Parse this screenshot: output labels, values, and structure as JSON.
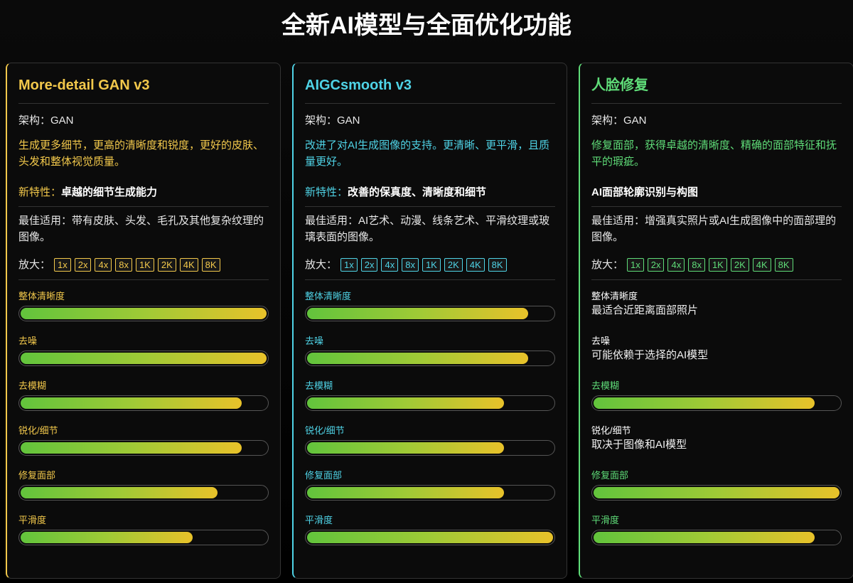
{
  "title": "全新AI模型与全面优化功能",
  "scale": [
    0,
    100
  ],
  "cards": [
    {
      "title": "More-detail GAN v3",
      "color": "#f2c84b",
      "arch": "架构：GAN",
      "desc": "生成更多细节，更高的清晰度和锐度，更好的皮肤、头发和整体视觉质量。",
      "feature_label": "新特性：",
      "feature_text": "卓越的细节生成能力",
      "best_for": "最佳适用：带有皮肤、头发、毛孔及其他复杂纹理的图像。",
      "zoom_label": "放大：",
      "zoom_options": [
        "1x",
        "2x",
        "4x",
        "8x",
        "1K",
        "2K",
        "4K",
        "8K"
      ],
      "metrics": [
        {
          "label": "整体清晰度",
          "value": 100
        },
        {
          "label": "去噪",
          "value": 100
        },
        {
          "label": "去模糊",
          "value": 90
        },
        {
          "label": "锐化/细节",
          "value": 90
        },
        {
          "label": "修复面部",
          "value": 80
        },
        {
          "label": "平滑度",
          "value": 70
        }
      ]
    },
    {
      "title": "AIGCsmooth v3",
      "color": "#4fd3e6",
      "arch": "架构：GAN",
      "desc": "改进了对AI生成图像的支持。更清晰、更平滑，且质量更好。",
      "feature_label": "新特性：",
      "feature_text": "改善的保真度、清晰度和细节",
      "best_for": "最佳适用：AI艺术、动漫、线条艺术、平滑纹理或玻璃表面的图像。",
      "zoom_label": "放大：",
      "zoom_options": [
        "1x",
        "2x",
        "4x",
        "8x",
        "1K",
        "2K",
        "4K",
        "8K"
      ],
      "metrics": [
        {
          "label": "整体清晰度",
          "value": 90
        },
        {
          "label": "去噪",
          "value": 90
        },
        {
          "label": "去模糊",
          "value": 80
        },
        {
          "label": "锐化/细节",
          "value": 80
        },
        {
          "label": "修复面部",
          "value": 80
        },
        {
          "label": "平滑度",
          "value": 100
        }
      ]
    },
    {
      "title": "人脸修复",
      "color": "#5fdc78",
      "arch": "架构：GAN",
      "desc": "修复面部，获得卓越的清晰度、精确的面部特征和抚平的瑕疵。",
      "feature_text": "AI面部轮廓识别与构图",
      "best_for": "最佳适用：增强真实照片或AI生成图像中的面部理的图像。",
      "zoom_label": "放大：",
      "zoom_options": [
        "1x",
        "2x",
        "4x",
        "8x",
        "1K",
        "2K",
        "4K",
        "8K"
      ],
      "metrics": [
        {
          "label": "整体清晰度",
          "note": "最适合近距离面部照片"
        },
        {
          "label": "去噪",
          "note": "可能依赖于选择的AI模型"
        },
        {
          "label": "去模糊",
          "value": 90
        },
        {
          "label": "锐化/细节",
          "note": "取决于图像和AI模型"
        },
        {
          "label": "修复面部",
          "value": 100
        },
        {
          "label": "平滑度",
          "value": 90
        }
      ]
    }
  ]
}
